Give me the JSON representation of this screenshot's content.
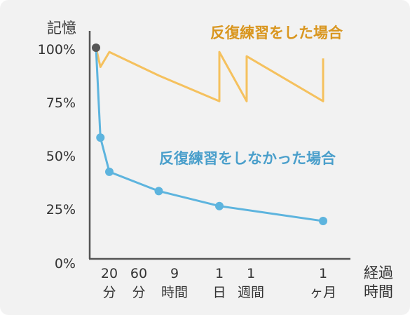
{
  "chart_data": {
    "type": "line",
    "ylabel": "記憶",
    "xlabel": [
      "経過",
      "時間"
    ],
    "y_ticks": [
      "100%",
      "75%",
      "50%",
      "25%",
      "0%"
    ],
    "ylim": [
      0,
      100
    ],
    "x_ticks": [
      {
        "top": "20",
        "bottom": "分"
      },
      {
        "top": "60",
        "bottom": "分"
      },
      {
        "top": "9",
        "bottom": "時間"
      },
      {
        "top": "1",
        "bottom": "日"
      },
      {
        "top": "1",
        "bottom": "週間"
      },
      {
        "top": "1",
        "bottom": "ヶ月"
      }
    ],
    "grid": false,
    "series": [
      {
        "name": "反復練習をした場合",
        "color": "#f5c15e",
        "label_color": "#d9961f",
        "x": [
          0,
          0.33,
          1,
          2.5,
          4,
          4,
          5,
          5,
          7.8,
          7.8
        ],
        "values": [
          100,
          91,
          98,
          87,
          75,
          98,
          75,
          96,
          75,
          95
        ]
      },
      {
        "name": "反復練習をしなかった場合",
        "color": "#5db4de",
        "label_color": "#4a9fcb",
        "marker_color": "#5db4de",
        "x": [
          0,
          0.33,
          1,
          2.5,
          4,
          7.8
        ],
        "values": [
          100,
          58,
          42,
          33,
          26,
          19
        ],
        "markers_at": [
          1,
          2,
          3,
          4,
          5
        ]
      }
    ],
    "start_point_color": "#555555",
    "axis_color": "#555555"
  }
}
